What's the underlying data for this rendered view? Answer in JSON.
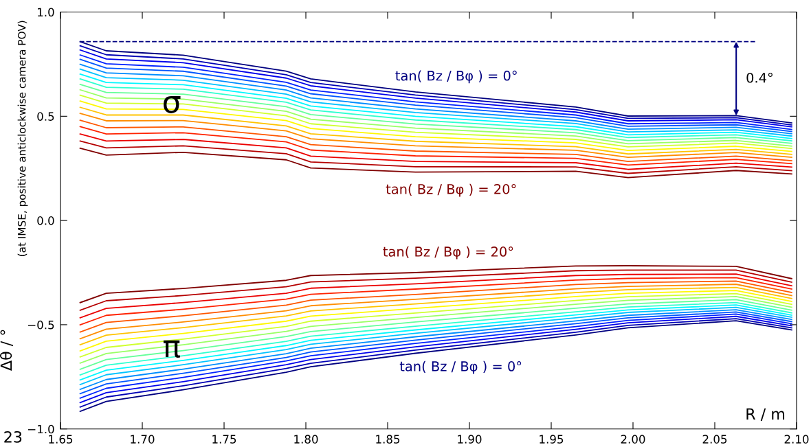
{
  "chart_data": {
    "type": "line",
    "ylabel": "Δθ / °",
    "xlabel": "R / m",
    "x": [
      1.662,
      1.678,
      1.725,
      1.788,
      1.803,
      1.867,
      1.965,
      1.997,
      2.063,
      2.097
    ],
    "xlim": [
      1.65,
      2.1
    ],
    "ylim": [
      -1,
      1
    ],
    "xticks": [
      {
        "value": 1.65,
        "label": "1.65"
      },
      {
        "value": 1.7,
        "label": "1.70"
      },
      {
        "value": 1.75,
        "label": "1.75"
      },
      {
        "value": 1.8,
        "label": "1.80"
      },
      {
        "value": 1.85,
        "label": "1.85"
      },
      {
        "value": 1.9,
        "label": "1.90"
      },
      {
        "value": 1.95,
        "label": "1.95"
      },
      {
        "value": 2.0,
        "label": "2.00"
      },
      {
        "value": 2.05,
        "label": "2.05"
      },
      {
        "value": 2.1,
        "label": "2.10"
      }
    ],
    "yticks": [
      {
        "value": -1,
        "label": "−1.0"
      },
      {
        "value": -0.5,
        "label": "−0.5"
      },
      {
        "value": 0,
        "label": "0.0"
      },
      {
        "value": 0.5,
        "label": "0.5"
      },
      {
        "value": 1,
        "label": "1.0"
      }
    ],
    "grid": false,
    "legend": false,
    "ref_lines": [
      {
        "axis": "y",
        "value": 0.858,
        "color": "#000080",
        "line_style": "dashed"
      }
    ],
    "annotations": [
      "σ",
      "π",
      "tan( Bz / Bφ ) = 0°",
      "tan( Bz / Bφ ) = 20°",
      "tan( Bz / Bφ ) = 20°",
      "tan( Bz / Bφ ) = 0°",
      "0.4°",
      "(at IMSE, positive anticlockwise camera POV)",
      "23"
    ],
    "series": [
      {
        "color": "#000080",
        "values": [
          0.858,
          0.814,
          0.793,
          0.716,
          0.679,
          0.617,
          0.544,
          0.501,
          0.503,
          0.468
        ]
      },
      {
        "color": "#0000b5",
        "values": [
          0.838,
          0.795,
          0.775,
          0.699,
          0.662,
          0.602,
          0.532,
          0.49,
          0.493,
          0.458
        ]
      },
      {
        "color": "#0000eb",
        "values": [
          0.818,
          0.775,
          0.757,
          0.683,
          0.646,
          0.587,
          0.52,
          0.478,
          0.483,
          0.449
        ]
      },
      {
        "color": "#0022ff",
        "values": [
          0.794,
          0.752,
          0.735,
          0.663,
          0.626,
          0.569,
          0.506,
          0.464,
          0.47,
          0.437
        ]
      },
      {
        "color": "#0057ff",
        "values": [
          0.773,
          0.731,
          0.716,
          0.645,
          0.608,
          0.553,
          0.493,
          0.452,
          0.459,
          0.427
        ]
      },
      {
        "color": "#008dff",
        "values": [
          0.749,
          0.708,
          0.694,
          0.626,
          0.588,
          0.535,
          0.478,
          0.438,
          0.447,
          0.416
        ]
      },
      {
        "color": "#00c3ff",
        "values": [
          0.726,
          0.685,
          0.673,
          0.606,
          0.569,
          0.518,
          0.465,
          0.425,
          0.435,
          0.405
        ]
      },
      {
        "color": "#00f8ff",
        "values": [
          0.702,
          0.662,
          0.651,
          0.586,
          0.549,
          0.5,
          0.45,
          0.411,
          0.423,
          0.393
        ]
      },
      {
        "color": "#2fffd0",
        "values": [
          0.679,
          0.639,
          0.63,
          0.567,
          0.53,
          0.482,
          0.436,
          0.398,
          0.411,
          0.382
        ]
      },
      {
        "color": "#65ff9a",
        "values": [
          0.653,
          0.614,
          0.606,
          0.546,
          0.508,
          0.463,
          0.421,
          0.383,
          0.398,
          0.37
        ]
      },
      {
        "color": "#9aff65",
        "values": [
          0.627,
          0.588,
          0.582,
          0.524,
          0.486,
          0.443,
          0.405,
          0.368,
          0.384,
          0.357
        ]
      },
      {
        "color": "#d0ff2f",
        "values": [
          0.601,
          0.563,
          0.559,
          0.502,
          0.464,
          0.423,
          0.389,
          0.353,
          0.371,
          0.345
        ]
      },
      {
        "color": "#fff800",
        "values": [
          0.573,
          0.535,
          0.533,
          0.479,
          0.441,
          0.402,
          0.372,
          0.336,
          0.356,
          0.331
        ]
      },
      {
        "color": "#ffc300",
        "values": [
          0.543,
          0.506,
          0.506,
          0.454,
          0.416,
          0.38,
          0.354,
          0.319,
          0.341,
          0.317
        ]
      },
      {
        "color": "#ff8d00",
        "values": [
          0.514,
          0.478,
          0.479,
          0.43,
          0.392,
          0.358,
          0.337,
          0.303,
          0.326,
          0.303
        ]
      },
      {
        "color": "#ff5700",
        "values": [
          0.481,
          0.445,
          0.449,
          0.402,
          0.364,
          0.333,
          0.317,
          0.283,
          0.309,
          0.287
        ]
      },
      {
        "color": "#ff2200",
        "values": [
          0.45,
          0.415,
          0.421,
          0.377,
          0.338,
          0.31,
          0.298,
          0.266,
          0.293,
          0.273
        ]
      },
      {
        "color": "#eb0000",
        "values": [
          0.415,
          0.381,
          0.389,
          0.348,
          0.309,
          0.283,
          0.277,
          0.245,
          0.275,
          0.256
        ]
      },
      {
        "color": "#b50000",
        "values": [
          0.381,
          0.348,
          0.358,
          0.32,
          0.281,
          0.258,
          0.257,
          0.226,
          0.258,
          0.239
        ]
      },
      {
        "color": "#800000",
        "values": [
          0.347,
          0.314,
          0.327,
          0.291,
          0.252,
          0.232,
          0.236,
          0.206,
          0.24,
          0.223
        ]
      },
      {
        "color": "#800000",
        "values": [
          -0.394,
          -0.349,
          -0.326,
          -0.287,
          -0.264,
          -0.25,
          -0.218,
          -0.217,
          -0.22,
          -0.279
        ]
      },
      {
        "color": "#b50000",
        "values": [
          -0.431,
          -0.385,
          -0.36,
          -0.318,
          -0.295,
          -0.277,
          -0.241,
          -0.238,
          -0.238,
          -0.296
        ]
      },
      {
        "color": "#eb0000",
        "values": [
          -0.467,
          -0.422,
          -0.394,
          -0.349,
          -0.325,
          -0.304,
          -0.264,
          -0.259,
          -0.257,
          -0.313
        ]
      },
      {
        "color": "#ff2200",
        "values": [
          -0.501,
          -0.455,
          -0.426,
          -0.377,
          -0.354,
          -0.329,
          -0.286,
          -0.278,
          -0.274,
          -0.329
        ]
      },
      {
        "color": "#ff5700",
        "values": [
          -0.535,
          -0.489,
          -0.457,
          -0.406,
          -0.382,
          -0.355,
          -0.307,
          -0.298,
          -0.291,
          -0.345
        ]
      },
      {
        "color": "#ff8d00",
        "values": [
          -0.567,
          -0.521,
          -0.487,
          -0.433,
          -0.409,
          -0.378,
          -0.328,
          -0.316,
          -0.306,
          -0.36
        ]
      },
      {
        "color": "#ffc300",
        "values": [
          -0.596,
          -0.55,
          -0.514,
          -0.458,
          -0.434,
          -0.4,
          -0.346,
          -0.332,
          -0.321,
          -0.374
        ]
      },
      {
        "color": "#fff800",
        "values": [
          -0.626,
          -0.579,
          -0.542,
          -0.483,
          -0.459,
          -0.422,
          -0.365,
          -0.349,
          -0.336,
          -0.388
        ]
      },
      {
        "color": "#d0ff2f",
        "values": [
          -0.655,
          -0.609,
          -0.569,
          -0.508,
          -0.483,
          -0.444,
          -0.384,
          -0.366,
          -0.351,
          -0.402
        ]
      },
      {
        "color": "#9aff65",
        "values": [
          -0.684,
          -0.638,
          -0.596,
          -0.532,
          -0.508,
          -0.465,
          -0.402,
          -0.383,
          -0.365,
          -0.416
        ]
      },
      {
        "color": "#65ff9a",
        "values": [
          -0.714,
          -0.667,
          -0.624,
          -0.557,
          -0.533,
          -0.487,
          -0.421,
          -0.4,
          -0.38,
          -0.43
        ]
      },
      {
        "color": "#2fffd0",
        "values": [
          -0.741,
          -0.694,
          -0.649,
          -0.58,
          -0.555,
          -0.507,
          -0.438,
          -0.415,
          -0.394,
          -0.443
        ]
      },
      {
        "color": "#00f8ff",
        "values": [
          -0.765,
          -0.718,
          -0.671,
          -0.6,
          -0.575,
          -0.525,
          -0.453,
          -0.429,
          -0.405,
          -0.454
        ]
      },
      {
        "color": "#00c3ff",
        "values": [
          -0.787,
          -0.74,
          -0.692,
          -0.619,
          -0.594,
          -0.541,
          -0.467,
          -0.441,
          -0.417,
          -0.464
        ]
      },
      {
        "color": "#008dff",
        "values": [
          -0.81,
          -0.763,
          -0.713,
          -0.639,
          -0.613,
          -0.558,
          -0.482,
          -0.455,
          -0.428,
          -0.475
        ]
      },
      {
        "color": "#0057ff",
        "values": [
          -0.831,
          -0.784,
          -0.733,
          -0.657,
          -0.631,
          -0.574,
          -0.495,
          -0.467,
          -0.439,
          -0.485
        ]
      },
      {
        "color": "#0022ff",
        "values": [
          -0.852,
          -0.805,
          -0.753,
          -0.674,
          -0.649,
          -0.59,
          -0.509,
          -0.479,
          -0.449,
          -0.495
        ]
      },
      {
        "color": "#0000eb",
        "values": [
          -0.874,
          -0.826,
          -0.773,
          -0.692,
          -0.667,
          -0.606,
          -0.522,
          -0.491,
          -0.46,
          -0.505
        ]
      },
      {
        "color": "#0000b5",
        "values": [
          -0.895,
          -0.847,
          -0.793,
          -0.71,
          -0.685,
          -0.622,
          -0.536,
          -0.503,
          -0.471,
          -0.515
        ]
      },
      {
        "color": "#000080",
        "values": [
          -0.916,
          -0.868,
          -0.812,
          -0.728,
          -0.702,
          -0.637,
          -0.549,
          -0.515,
          -0.481,
          -0.525
        ]
      }
    ]
  }
}
